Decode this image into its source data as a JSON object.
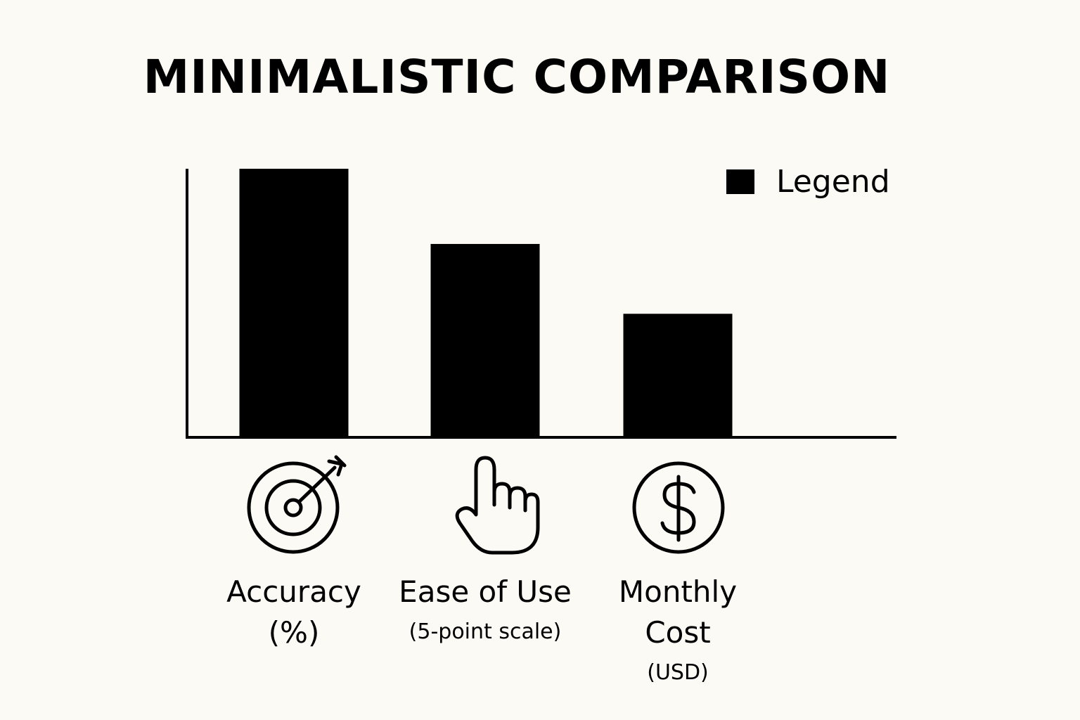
{
  "chart_data": {
    "type": "bar",
    "title": "MINIMALISTIC COMPARISON",
    "categories": [
      "Accuracy (%)",
      "Ease of Use (5-point scale)",
      "Monthly Cost (USD)"
    ],
    "category_labels": [
      {
        "lines": [
          "Accuracy",
          "(%)"
        ],
        "icon": "target-icon"
      },
      {
        "lines": [
          "Ease of Use",
          "(5-point scale)"
        ],
        "icon": "pointing-hand-icon"
      },
      {
        "lines": [
          "Monthly",
          "Cost",
          "(USD)"
        ],
        "icon": "dollar-circle-icon"
      }
    ],
    "values": [
      100,
      72,
      46
    ],
    "ylim": [
      0,
      100
    ],
    "legend": {
      "label": "Legend",
      "placement": "top-right"
    },
    "bar_color": "#000000",
    "grid": false,
    "xlabel": "",
    "ylabel": ""
  },
  "colors": {
    "background": "#fbfaf5",
    "ink": "#000000"
  }
}
